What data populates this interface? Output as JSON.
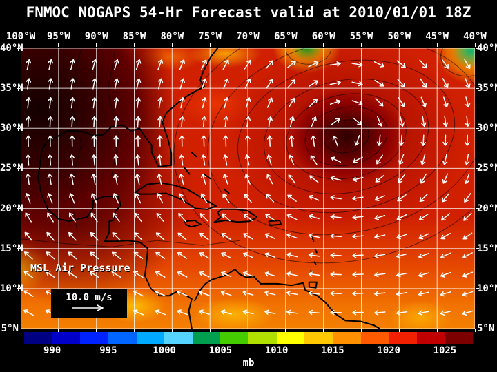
{
  "title": "FNMOC NOGAPS 54-Hr Forecast valid at 2010/01/01 18Z",
  "axes": {
    "lon_labels": [
      "100°W",
      "95°W",
      "90°W",
      "85°W",
      "80°W",
      "75°W",
      "70°W",
      "65°W",
      "60°W",
      "55°W",
      "50°W",
      "45°W",
      "40°W"
    ],
    "lat_labels": [
      "40°N",
      "35°N",
      "30°N",
      "25°N",
      "20°N",
      "15°N",
      "10°N",
      "5°N"
    ]
  },
  "map": {
    "overlay_label": "MSL Air Pressure",
    "wind_legend": "10.0 m/s",
    "lon_range": [
      -100,
      -40
    ],
    "lat_range": [
      5,
      40
    ],
    "wind": {
      "cols": 21,
      "rows": 14,
      "anticyclone_center": [
        -57,
        29
      ]
    },
    "coastlines": [
      {
        "name": "us-atlantic-gulf-coast",
        "closed": false,
        "pts": [
          [
            -74.0,
            40.0
          ],
          [
            -74.9,
            38.9
          ],
          [
            -75.9,
            37.1
          ],
          [
            -76.3,
            36.0
          ],
          [
            -75.7,
            35.2
          ],
          [
            -76.8,
            34.7
          ],
          [
            -77.9,
            34.1
          ],
          [
            -79.2,
            33.2
          ],
          [
            -80.7,
            32.0
          ],
          [
            -81.3,
            30.8
          ],
          [
            -80.5,
            28.5
          ],
          [
            -80.1,
            26.9
          ],
          [
            -80.1,
            25.4
          ],
          [
            -81.8,
            25.2
          ],
          [
            -82.7,
            27.0
          ],
          [
            -82.7,
            27.9
          ],
          [
            -83.7,
            29.1
          ],
          [
            -84.3,
            30.0
          ],
          [
            -85.4,
            29.7
          ],
          [
            -86.6,
            30.4
          ],
          [
            -88.0,
            30.2
          ],
          [
            -89.1,
            29.2
          ],
          [
            -90.3,
            29.1
          ],
          [
            -91.9,
            29.6
          ],
          [
            -93.8,
            29.7
          ],
          [
            -95.3,
            28.9
          ],
          [
            -96.6,
            28.3
          ],
          [
            -97.2,
            27.3
          ],
          [
            -97.4,
            25.9
          ]
        ]
      },
      {
        "name": "mexico-central-america-coast",
        "closed": false,
        "pts": [
          [
            -97.4,
            25.9
          ],
          [
            -97.7,
            23.8
          ],
          [
            -97.2,
            21.6
          ],
          [
            -96.4,
            19.9
          ],
          [
            -95.0,
            18.7
          ],
          [
            -93.6,
            18.4
          ],
          [
            -92.3,
            18.7
          ],
          [
            -91.3,
            18.9
          ],
          [
            -90.5,
            19.9
          ],
          [
            -90.4,
            21.0
          ],
          [
            -88.9,
            21.5
          ],
          [
            -87.1,
            21.5
          ],
          [
            -86.8,
            20.4
          ],
          [
            -87.5,
            19.6
          ],
          [
            -87.8,
            18.5
          ],
          [
            -88.3,
            18.4
          ],
          [
            -88.3,
            17.0
          ],
          [
            -88.9,
            15.9
          ],
          [
            -87.5,
            15.9
          ],
          [
            -85.9,
            16.0
          ],
          [
            -84.3,
            15.8
          ],
          [
            -83.2,
            15.0
          ],
          [
            -83.4,
            13.0
          ],
          [
            -83.6,
            11.6
          ],
          [
            -82.8,
            10.0
          ],
          [
            -81.7,
            9.1
          ],
          [
            -80.4,
            9.1
          ],
          [
            -79.4,
            9.6
          ],
          [
            -78.4,
            9.3
          ],
          [
            -77.4,
            8.7
          ],
          [
            -77.8,
            7.2
          ],
          [
            -77.4,
            5.0
          ]
        ]
      },
      {
        "name": "south-america-north-coast",
        "closed": false,
        "pts": [
          [
            -77.0,
            8.5
          ],
          [
            -76.3,
            9.8
          ],
          [
            -75.6,
            10.6
          ],
          [
            -74.8,
            11.1
          ],
          [
            -72.8,
            11.7
          ],
          [
            -71.7,
            12.4
          ],
          [
            -71.1,
            11.8
          ],
          [
            -70.2,
            11.4
          ],
          [
            -69.2,
            11.5
          ],
          [
            -68.3,
            10.6
          ],
          [
            -66.1,
            10.6
          ],
          [
            -64.2,
            10.4
          ],
          [
            -62.7,
            10.7
          ],
          [
            -62.4,
            9.8
          ],
          [
            -60.8,
            9.1
          ],
          [
            -59.8,
            8.3
          ],
          [
            -58.5,
            6.9
          ],
          [
            -57.1,
            6.0
          ],
          [
            -55.1,
            5.9
          ],
          [
            -53.3,
            5.4
          ],
          [
            -52.6,
            5.0
          ]
        ]
      },
      {
        "name": "cuba",
        "closed": true,
        "pts": [
          [
            -84.9,
            22.0
          ],
          [
            -83.3,
            23.0
          ],
          [
            -81.5,
            23.2
          ],
          [
            -79.8,
            22.9
          ],
          [
            -78.0,
            22.4
          ],
          [
            -76.0,
            21.3
          ],
          [
            -74.2,
            20.3
          ],
          [
            -75.3,
            19.9
          ],
          [
            -76.9,
            20.0
          ],
          [
            -78.7,
            21.1
          ],
          [
            -80.8,
            21.9
          ],
          [
            -82.8,
            21.8
          ],
          [
            -84.3,
            21.8
          ]
        ]
      },
      {
        "name": "hispaniola",
        "closed": true,
        "pts": [
          [
            -73.5,
            19.9
          ],
          [
            -71.6,
            19.9
          ],
          [
            -70.0,
            19.7
          ],
          [
            -68.8,
            18.9
          ],
          [
            -69.8,
            18.4
          ],
          [
            -71.3,
            18.3
          ],
          [
            -72.9,
            18.5
          ],
          [
            -74.4,
            18.3
          ],
          [
            -73.6,
            18.9
          ],
          [
            -74.0,
            19.5
          ]
        ]
      },
      {
        "name": "jamaica",
        "closed": true,
        "pts": [
          [
            -78.3,
            18.4
          ],
          [
            -77.0,
            18.5
          ],
          [
            -76.2,
            18.0
          ],
          [
            -77.5,
            17.7
          ],
          [
            -78.2,
            18.0
          ]
        ]
      },
      {
        "name": "puerto-rico",
        "closed": true,
        "pts": [
          [
            -67.2,
            18.4
          ],
          [
            -65.8,
            18.5
          ],
          [
            -65.6,
            18.0
          ],
          [
            -67.1,
            17.9
          ]
        ]
      },
      {
        "name": "trinidad",
        "closed": true,
        "pts": [
          [
            -61.9,
            10.8
          ],
          [
            -60.9,
            10.8
          ],
          [
            -61.0,
            10.1
          ],
          [
            -61.9,
            10.2
          ]
        ]
      },
      {
        "name": "bahamas-1",
        "closed": false,
        "pts": [
          [
            -78.4,
            25.1
          ],
          [
            -77.7,
            24.3
          ]
        ]
      },
      {
        "name": "bahamas-2",
        "closed": false,
        "pts": [
          [
            -77.4,
            27.0
          ],
          [
            -76.8,
            26.5
          ]
        ]
      },
      {
        "name": "bahamas-3",
        "closed": false,
        "pts": [
          [
            -75.7,
            24.2
          ],
          [
            -74.9,
            23.7
          ]
        ]
      },
      {
        "name": "bahamas-4",
        "closed": false,
        "pts": [
          [
            -73.1,
            22.4
          ],
          [
            -72.5,
            21.9
          ]
        ]
      },
      {
        "name": "lesser-antilles-1",
        "closed": false,
        "pts": [
          [
            -61.5,
            16.4
          ],
          [
            -61.3,
            15.9
          ]
        ]
      },
      {
        "name": "lesser-antilles-2",
        "closed": false,
        "pts": [
          [
            -61.1,
            14.9
          ],
          [
            -60.9,
            14.5
          ]
        ]
      },
      {
        "name": "lesser-antilles-3",
        "closed": false,
        "pts": [
          [
            -61.2,
            13.3
          ],
          [
            -61.0,
            13.0
          ]
        ]
      },
      {
        "name": "lesser-antilles-4",
        "closed": false,
        "pts": [
          [
            -61.7,
            12.2
          ],
          [
            -61.4,
            12.0
          ]
        ]
      }
    ]
  },
  "contours": {
    "high_center": [
      -57,
      29
    ],
    "ellipses_deg": [
      [
        3,
        2
      ],
      [
        5.5,
        3.6
      ],
      [
        8,
        5.2
      ],
      [
        11,
        7
      ],
      [
        14.5,
        9.3
      ],
      [
        18.5,
        12
      ],
      [
        23,
        15.5
      ]
    ],
    "low_ellipses": [
      {
        "c": [
          -62,
          40
        ],
        "r": [
          3,
          2
        ]
      },
      {
        "c": [
          -41,
          39
        ],
        "r": [
          3.5,
          2.5
        ]
      }
    ],
    "lines": [
      [
        [
          -92,
          40
        ],
        [
          -93.5,
          34
        ],
        [
          -92,
          28
        ],
        [
          -93.5,
          22
        ],
        [
          -92.5,
          17
        ]
      ],
      [
        [
          -87.5,
          40
        ],
        [
          -88.5,
          34.5
        ],
        [
          -87,
          29
        ],
        [
          -88,
          24
        ]
      ],
      [
        [
          -100,
          16.2
        ],
        [
          -94,
          15.6
        ],
        [
          -88,
          15.2
        ],
        [
          -82,
          16.0
        ],
        [
          -76,
          15.4
        ],
        [
          -71,
          16.0
        ]
      ]
    ]
  },
  "colorbar": {
    "unit": "mb",
    "min": 987.5,
    "max": 1027.5,
    "tick_values": [
      990,
      995,
      1000,
      1005,
      1010,
      1015,
      1020,
      1025
    ],
    "segment_colors": [
      "#000082",
      "#0000c8",
      "#0022ff",
      "#0066ff",
      "#00aaff",
      "#55d4ff",
      "#00a050",
      "#44cc00",
      "#b0e000",
      "#ffff00",
      "#ffc800",
      "#ff9100",
      "#ff5a00",
      "#f02000",
      "#c00000",
      "#7c0000"
    ]
  },
  "chart_data": {
    "type": "heatmap",
    "title": "FNMOC NOGAPS 54-Hr Forecast valid at 2010/01/01 18Z",
    "variable": "MSL Air Pressure",
    "unit": "mb",
    "lon_range_deg_w": [
      100,
      40
    ],
    "lat_range_deg_n": [
      5,
      40
    ],
    "colorbar_ticks_mb": [
      990,
      995,
      1000,
      1005,
      1010,
      1015,
      1020,
      1025
    ],
    "wind_reference_ms": 10.0,
    "pressure_features": [
      {
        "type": "high",
        "approx_lon": "57W",
        "approx_lat": "29N",
        "approx_mb": 1026
      },
      {
        "type": "high",
        "approx_lon": "97W",
        "approx_lat": "30N",
        "approx_mb": 1025
      },
      {
        "type": "low",
        "approx_lon": "62W",
        "approx_lat": "40N",
        "approx_mb": 1005
      },
      {
        "type": "low",
        "approx_lon": "41W",
        "approx_lat": "39N",
        "approx_mb": 1003
      }
    ]
  }
}
